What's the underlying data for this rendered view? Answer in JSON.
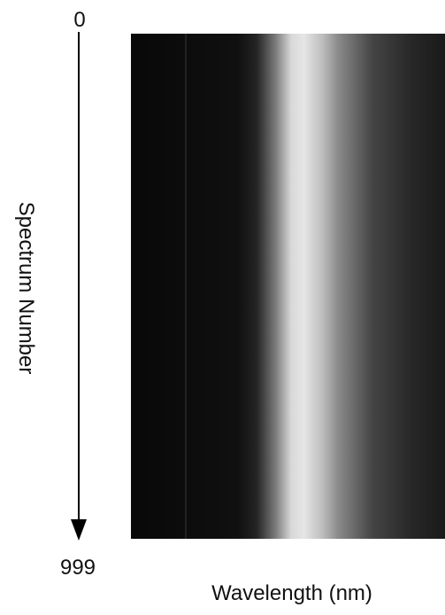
{
  "vertical_axis": {
    "start": "0",
    "end": "999",
    "label": "Spectrum Number"
  },
  "horizontal_axis": {
    "label": "Wavelength (nm)"
  }
}
